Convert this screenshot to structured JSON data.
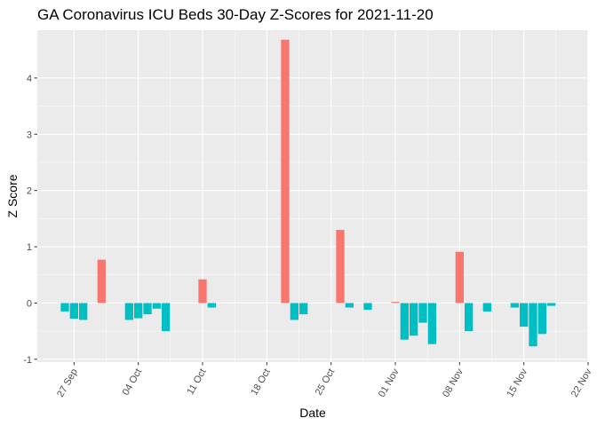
{
  "chart_data": {
    "type": "bar",
    "title": "GA Coronavirus ICU Beds 30-Day Z-Scores for 2021-11-20",
    "xlabel": "Date",
    "ylabel": "Z Score",
    "x_range": [
      "2021-09-23",
      "2021-11-22"
    ],
    "ylim": [
      -1.05,
      4.85
    ],
    "y_ticks": [
      -1,
      0,
      1,
      2,
      3,
      4
    ],
    "x_ticks": [
      {
        "date": "2021-09-27",
        "label": "27 Sep"
      },
      {
        "date": "2021-10-04",
        "label": "04 Oct"
      },
      {
        "date": "2021-10-11",
        "label": "11 Oct"
      },
      {
        "date": "2021-10-18",
        "label": "18 Oct"
      },
      {
        "date": "2021-10-25",
        "label": "25 Oct"
      },
      {
        "date": "2021-11-01",
        "label": "01 Nov"
      },
      {
        "date": "2021-11-08",
        "label": "08 Nov"
      },
      {
        "date": "2021-11-15",
        "label": "15 Nov"
      },
      {
        "date": "2021-11-22",
        "label": "22 Nov"
      }
    ],
    "grid": true,
    "legend": "none",
    "colors": {
      "positive": "#F8766D",
      "negative": "#00BFC4",
      "panel": "#EBEBEB",
      "grid": "#FFFFFF"
    },
    "bars": [
      {
        "date": "2021-09-26",
        "value": -0.15
      },
      {
        "date": "2021-09-27",
        "value": -0.28
      },
      {
        "date": "2021-09-28",
        "value": -0.3
      },
      {
        "date": "2021-09-30",
        "value": 0.77
      },
      {
        "date": "2021-10-03",
        "value": -0.3
      },
      {
        "date": "2021-10-04",
        "value": -0.27
      },
      {
        "date": "2021-10-05",
        "value": -0.2
      },
      {
        "date": "2021-10-06",
        "value": -0.1
      },
      {
        "date": "2021-10-07",
        "value": -0.5
      },
      {
        "date": "2021-10-11",
        "value": 0.42
      },
      {
        "date": "2021-10-12",
        "value": -0.08
      },
      {
        "date": "2021-10-20",
        "value": 4.68
      },
      {
        "date": "2021-10-21",
        "value": -0.3
      },
      {
        "date": "2021-10-22",
        "value": -0.2
      },
      {
        "date": "2021-10-26",
        "value": 1.3
      },
      {
        "date": "2021-10-27",
        "value": -0.08
      },
      {
        "date": "2021-10-29",
        "value": -0.12
      },
      {
        "date": "2021-11-01",
        "value": 0.02
      },
      {
        "date": "2021-11-02",
        "value": -0.65
      },
      {
        "date": "2021-11-03",
        "value": -0.58
      },
      {
        "date": "2021-11-04",
        "value": -0.35
      },
      {
        "date": "2021-11-05",
        "value": -0.73
      },
      {
        "date": "2021-11-08",
        "value": 0.91
      },
      {
        "date": "2021-11-09",
        "value": -0.5
      },
      {
        "date": "2021-11-11",
        "value": -0.15
      },
      {
        "date": "2021-11-14",
        "value": -0.08
      },
      {
        "date": "2021-11-15",
        "value": -0.42
      },
      {
        "date": "2021-11-16",
        "value": -0.77
      },
      {
        "date": "2021-11-17",
        "value": -0.55
      },
      {
        "date": "2021-11-18",
        "value": -0.05
      }
    ]
  }
}
